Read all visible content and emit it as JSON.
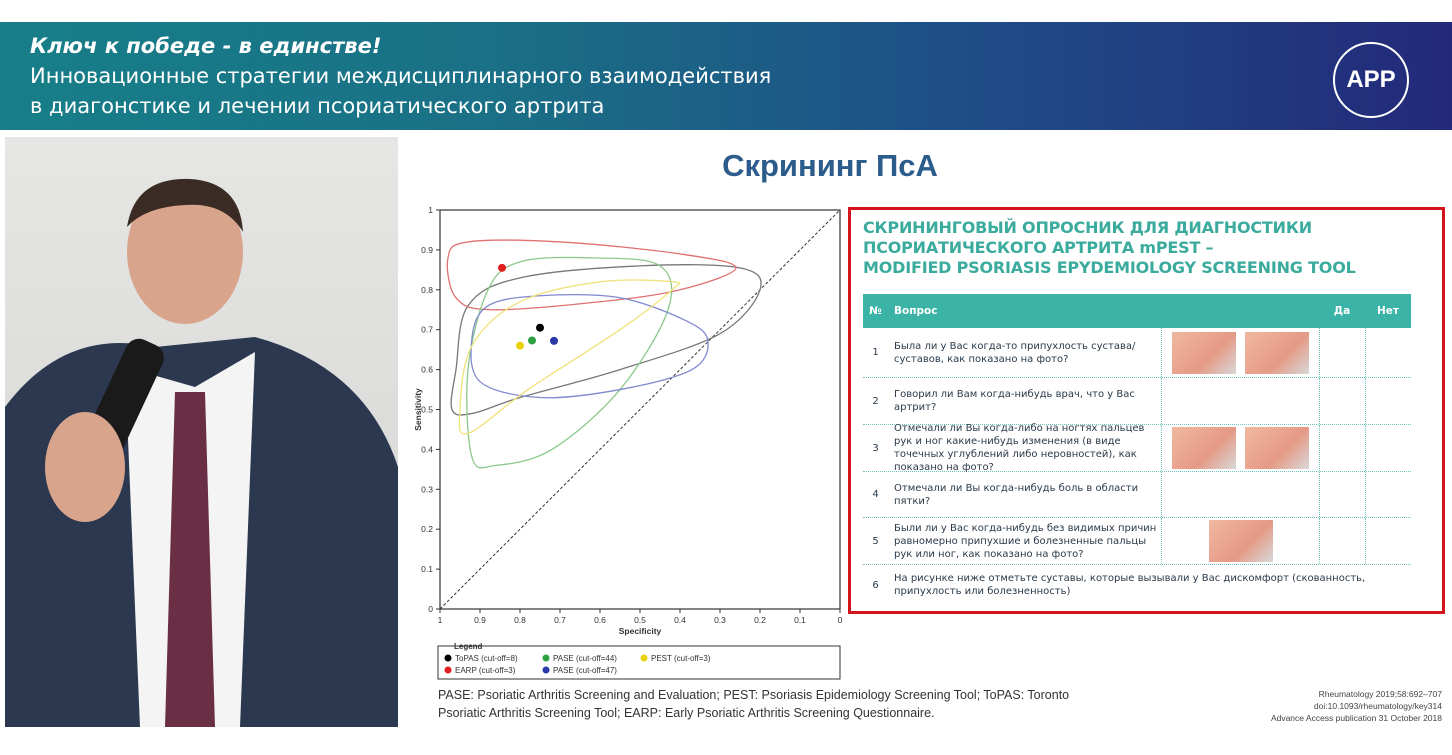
{
  "banner": {
    "tagline": "Ключ к победе - в единстве!",
    "line1": "Инновационные стратегии междисциплинарного взаимодействия",
    "line2": "в диагонстике и лечении псориатического артрита",
    "logo_text": "АРР"
  },
  "slide": {
    "title": "Скрининг ПсА",
    "footnote_line1": "PASE: Psoriatic Arthritis Screening and Evaluation; PEST: Psoriasis Epidemiology Screening Tool; ToPAS: Toronto",
    "footnote_line2": "Psoriatic Arthritis Screening Tool; EARP: Early Psoriatic Arthritis Screening Questionnaire.",
    "reference": [
      "Rheumatology 2019;58:692–707",
      "doi:10.1093/rheumatology/key314",
      "Advance Access publication 31 October 2018"
    ]
  },
  "chart_data": {
    "type": "scatter",
    "xlabel": "Specificity",
    "ylabel": "Sensitivity",
    "xlim": [
      1,
      0
    ],
    "ylim": [
      0,
      1
    ],
    "xticks": [
      "1",
      "0.9",
      "0.8",
      "0.7",
      "0.6",
      "0.5",
      "0.4",
      "0.3",
      "0.2",
      "0.1",
      "0"
    ],
    "yticks": [
      "0",
      "0.1",
      "0.2",
      "0.3",
      "0.4",
      "0.5",
      "0.6",
      "0.7",
      "0.8",
      "0.9",
      "1"
    ],
    "diagonal": true,
    "legend_title": "Legend",
    "legend_position": "bottom",
    "series": [
      {
        "name": "ToPAS (cut-off=8)",
        "color": "#000000",
        "x": 0.75,
        "y": 0.705,
        "region": [
          [
            0.96,
            0.6
          ],
          [
            0.93,
            0.76
          ],
          [
            0.8,
            0.83
          ],
          [
            0.5,
            0.86
          ],
          [
            0.25,
            0.855
          ],
          [
            0.2,
            0.8
          ],
          [
            0.3,
            0.69
          ],
          [
            0.55,
            0.6
          ],
          [
            0.8,
            0.53
          ],
          [
            0.92,
            0.49
          ],
          [
            0.97,
            0.5
          ]
        ]
      },
      {
        "name": "EARP (cut-off=3)",
        "color": "#e02020",
        "x": 0.845,
        "y": 0.855,
        "region": [
          [
            0.98,
            0.88
          ],
          [
            0.93,
            0.92
          ],
          [
            0.7,
            0.92
          ],
          [
            0.4,
            0.89
          ],
          [
            0.26,
            0.855
          ],
          [
            0.4,
            0.8
          ],
          [
            0.6,
            0.77
          ],
          [
            0.87,
            0.75
          ],
          [
            0.96,
            0.78
          ]
        ]
      },
      {
        "name": "PASE (cut-off=44)",
        "color": "#2ea043",
        "x": 0.77,
        "y": 0.673,
        "region": [
          [
            0.88,
            0.8
          ],
          [
            0.8,
            0.87
          ],
          [
            0.62,
            0.88
          ],
          [
            0.45,
            0.86
          ],
          [
            0.43,
            0.75
          ],
          [
            0.55,
            0.55
          ],
          [
            0.72,
            0.4
          ],
          [
            0.86,
            0.36
          ],
          [
            0.92,
            0.38
          ],
          [
            0.93,
            0.6
          ]
        ]
      },
      {
        "name": "PASE (cut-off=47)",
        "color": "#2a3aa8",
        "x": 0.715,
        "y": 0.672,
        "region": [
          [
            0.92,
            0.68
          ],
          [
            0.88,
            0.76
          ],
          [
            0.75,
            0.785
          ],
          [
            0.55,
            0.78
          ],
          [
            0.38,
            0.72
          ],
          [
            0.33,
            0.67
          ],
          [
            0.37,
            0.6
          ],
          [
            0.55,
            0.55
          ],
          [
            0.75,
            0.53
          ],
          [
            0.9,
            0.57
          ]
        ]
      },
      {
        "name": "PEST (cut-off=3)",
        "color": "#e8d20a",
        "x": 0.8,
        "y": 0.66,
        "region": [
          [
            0.95,
            0.5
          ],
          [
            0.92,
            0.66
          ],
          [
            0.8,
            0.77
          ],
          [
            0.6,
            0.82
          ],
          [
            0.42,
            0.82
          ],
          [
            0.42,
            0.8
          ],
          [
            0.55,
            0.7
          ],
          [
            0.78,
            0.55
          ],
          [
            0.93,
            0.44
          ]
        ]
      }
    ]
  },
  "mpest": {
    "title1": "СКРИНИНГОВЫЙ ОПРОСНИК ДЛЯ ДИАГНОСТИКИ",
    "title2": "ПСОРИАТИЧЕСКОГО АРТРИТА mPEST –",
    "title3": "MODIFIED PSORIASIS EPYDEMIOLOGY SCREENING TOOL",
    "headers": {
      "num": "№",
      "question": "Вопрос",
      "yes": "Да",
      "no": "Нет"
    },
    "rows": [
      {
        "num": "1",
        "q": "Была ли у Вас когда-то припухлость сустава/суставов, как показано на фото?"
      },
      {
        "num": "2",
        "q": "Говорил ли Вам когда-нибудь врач, что у Вас артрит?"
      },
      {
        "num": "3",
        "q": "Отмечали ли Вы когда-либо на ногтях пальцев рук и ног какие-нибудь изменения (в виде точечных углублений либо неровностей), как показано на фото?"
      },
      {
        "num": "4",
        "q": "Отмечали ли Вы когда-нибудь боль в области пятки?"
      },
      {
        "num": "5",
        "q": "Были ли у Вас когда-нибудь без видимых причин равномерно припухшие и болезненные пальцы рук или ног, как показано на фото?"
      },
      {
        "num": "6",
        "q": "На рисунке ниже отметьте суставы, которые вызывали у Вас дискомфорт (скованность, припухлость или болезненность)"
      }
    ]
  }
}
